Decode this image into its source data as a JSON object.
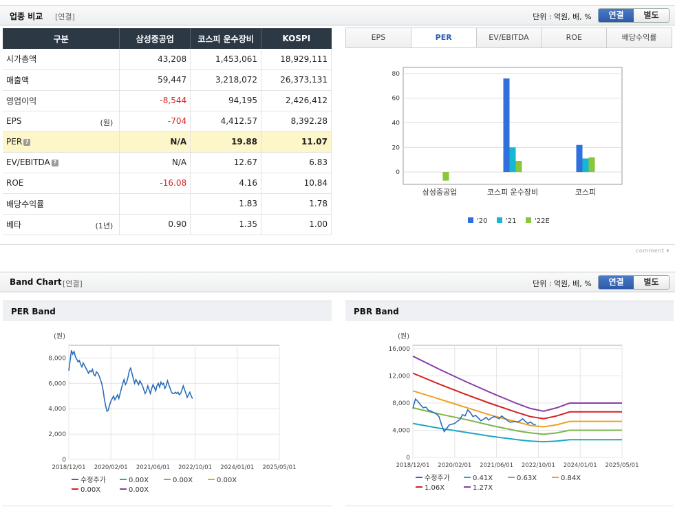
{
  "sector": {
    "title": "업종 비교",
    "basis": "[연결]",
    "unit": "단위 : 억원, 배, %",
    "toggle_on": "연결",
    "toggle_off": "별도",
    "headers": [
      "구분",
      "삼성중공업",
      "코스피 운수장비",
      "KOSPI"
    ],
    "rows": [
      {
        "label": "시가총액",
        "unit": "",
        "v1": "43,208",
        "v2": "1,453,061",
        "v3": "18,929,111"
      },
      {
        "label": "매출액",
        "unit": "",
        "v1": "59,447",
        "v2": "3,218,072",
        "v3": "26,373,131"
      },
      {
        "label": "영업이익",
        "unit": "",
        "v1": "-8,544",
        "v2": "94,195",
        "v3": "2,426,412"
      },
      {
        "label": "EPS",
        "unit": "(원)",
        "v1": "-704",
        "v2": "4,412.57",
        "v3": "8,392.28"
      },
      {
        "label": "PER",
        "unit": "",
        "v1": "N/A",
        "v2": "19.88",
        "v3": "11.07"
      },
      {
        "label": "EV/EBITDA",
        "unit": "",
        "v1": "N/A",
        "v2": "12.67",
        "v3": "6.83"
      },
      {
        "label": "ROE",
        "unit": "",
        "v1": "-16.08",
        "v2": "4.16",
        "v3": "10.84"
      },
      {
        "label": "배당수익률",
        "unit": "",
        "v1": "",
        "v2": "1.83",
        "v3": "1.78"
      },
      {
        "label": "베타",
        "unit": "(1년)",
        "v1": "0.90",
        "v2": "1.35",
        "v3": "1.00"
      }
    ],
    "tabs": [
      "EPS",
      "PER",
      "EV/EBITDA",
      "ROE",
      "배당수익률"
    ],
    "active_tab": "PER",
    "comment": "comment ▾"
  },
  "chart_data": [
    {
      "type": "bar",
      "title": "PER",
      "categories": [
        "삼성중공업",
        "코스피 운수장비",
        "코스피"
      ],
      "series": [
        {
          "name": "'20",
          "values": [
            0,
            76,
            22
          ]
        },
        {
          "name": "'21",
          "values": [
            0,
            20,
            11
          ]
        },
        {
          "name": "'22E",
          "values": [
            -7,
            9,
            12
          ]
        }
      ],
      "ylim": [
        -10,
        85
      ],
      "yticks": [
        0,
        20,
        40,
        60,
        80
      ],
      "colors": [
        "#2f6fde",
        "#15b7d3",
        "#8cc43c"
      ]
    },
    {
      "type": "line",
      "title": "PER Band",
      "ylabel": "(원)",
      "xticks": [
        "2018/12/01",
        "2020/02/01",
        "2021/06/01",
        "2022/10/01",
        "2024/01/01",
        "2025/05/01"
      ],
      "yticks": [
        "0",
        "2,000",
        "4,000",
        "6,000",
        "8,000"
      ],
      "ylim": [
        0,
        9000
      ],
      "xlim": [
        0,
        80
      ],
      "series": [
        {
          "name": "수정주가",
          "color": "#2a6db8",
          "x": [
            0,
            0.5,
            1,
            1.5,
            2,
            2.5,
            3,
            3.5,
            4,
            4.5,
            5,
            5.5,
            6,
            6.5,
            7,
            7.5,
            8,
            8.5,
            9,
            9.5,
            10,
            10.5,
            11,
            11.5,
            12,
            12.5,
            13,
            13.5,
            14,
            14.5,
            15,
            15.5,
            16,
            16.5,
            17,
            17.5,
            18,
            18.5,
            19,
            19.5,
            20,
            20.5,
            21,
            21.5,
            22,
            22.5,
            23,
            23.5,
            24,
            24.5,
            25,
            25.5,
            26,
            26.5,
            27,
            27.5,
            28,
            28.5,
            29,
            29.5,
            30,
            30.5,
            31,
            31.5,
            32,
            32.5,
            33,
            33.5,
            34,
            34.5,
            35,
            35.5,
            36,
            36.5,
            37,
            37.5,
            38,
            38.5,
            39,
            39.5,
            40,
            40.5,
            41,
            41.5,
            42,
            42.5,
            43,
            43.5,
            44,
            44.5,
            45,
            45.5,
            46,
            46.5,
            47
          ],
          "y": [
            7000,
            7800,
            8600,
            8300,
            8500,
            8100,
            7900,
            7700,
            7800,
            7500,
            7300,
            7600,
            7400,
            7200,
            7000,
            6800,
            7000,
            6900,
            7100,
            6700,
            6600,
            6900,
            6800,
            6600,
            6300,
            6000,
            5500,
            4800,
            4200,
            3800,
            3900,
            4300,
            4600,
            4800,
            5000,
            4700,
            4900,
            5100,
            4800,
            5200,
            5600,
            6000,
            6300,
            5900,
            6100,
            6500,
            7000,
            7200,
            6800,
            6400,
            6000,
            6300,
            6100,
            5900,
            6200,
            6000,
            5800,
            5500,
            5200,
            5400,
            5800,
            5500,
            5200,
            5600,
            5900,
            5700,
            5400,
            5800,
            6000,
            5700,
            6100,
            5900,
            6000,
            5600,
            5800,
            6200,
            5900,
            5600,
            5300,
            5200,
            5200,
            5300,
            5200,
            5300,
            5100,
            5200,
            5500,
            5800,
            5500,
            5200,
            4900,
            5100,
            5300,
            5000,
            4800
          ]
        },
        {
          "name": "0.00X",
          "color": "#1ea5c8",
          "x": [],
          "y": []
        },
        {
          "name": "0.00X",
          "color": "#7ab648",
          "x": [],
          "y": []
        },
        {
          "name": "0.00X",
          "color": "#f0a020",
          "x": [],
          "y": []
        },
        {
          "name": "0.00X",
          "color": "#d62020",
          "x": [],
          "y": []
        },
        {
          "name": "0.00X",
          "color": "#8a3ea8",
          "x": [],
          "y": []
        }
      ]
    },
    {
      "type": "line",
      "title": "PBR Band",
      "ylabel": "(원)",
      "xticks": [
        "2018/12/01",
        "2020/02/01",
        "2021/06/01",
        "2022/10/01",
        "2024/01/01",
        "2025/05/01"
      ],
      "yticks": [
        "0",
        "4,000",
        "8,000",
        "12,000",
        "16,000"
      ],
      "ylim": [
        0,
        16500
      ],
      "xlim": [
        0,
        80
      ],
      "series": [
        {
          "name": "수정주가",
          "color": "#2a6db8",
          "x": [
            0,
            1,
            2,
            3,
            4,
            5,
            6,
            7,
            8,
            9,
            10,
            11,
            12,
            13,
            14,
            15,
            16,
            17,
            18,
            19,
            20,
            21,
            22,
            23,
            24,
            25,
            26,
            27,
            28,
            29,
            30,
            31,
            32,
            33,
            34,
            35,
            36,
            37,
            38,
            39,
            40,
            41,
            42,
            43,
            44,
            45,
            46,
            47
          ],
          "y": [
            7200,
            8600,
            8200,
            7700,
            7300,
            7400,
            6900,
            6800,
            6600,
            6400,
            6000,
            4800,
            3800,
            4300,
            4800,
            4900,
            5000,
            5300,
            5600,
            6300,
            6100,
            7000,
            6600,
            6000,
            6200,
            5800,
            5400,
            5600,
            5900,
            5500,
            5800,
            6000,
            5900,
            5700,
            6100,
            5800,
            5500,
            5200,
            5200,
            5300,
            5200,
            5400,
            5700,
            5300,
            5000,
            5200,
            4900,
            4800
          ]
        },
        {
          "name": "0.41X",
          "color": "#1ea5c8",
          "x": [
            0,
            10,
            20,
            30,
            40,
            45,
            50,
            55,
            60,
            65,
            70,
            75,
            80
          ],
          "y": [
            5000,
            4300,
            3700,
            3100,
            2600,
            2400,
            2300,
            2400,
            2600,
            2600,
            2600,
            2600,
            2600
          ]
        },
        {
          "name": "0.63X",
          "color": "#7ab648",
          "x": [
            0,
            10,
            20,
            30,
            40,
            45,
            50,
            55,
            60,
            65,
            70,
            75,
            80
          ],
          "y": [
            7300,
            6400,
            5600,
            4700,
            3900,
            3600,
            3400,
            3600,
            4000,
            4000,
            4000,
            4000,
            4000
          ]
        },
        {
          "name": "0.84X",
          "color": "#f0a020",
          "x": [
            0,
            10,
            20,
            30,
            40,
            45,
            50,
            55,
            60,
            65,
            70,
            75,
            80
          ],
          "y": [
            9800,
            8600,
            7400,
            6200,
            5200,
            4700,
            4500,
            4800,
            5300,
            5300,
            5300,
            5300,
            5300
          ]
        },
        {
          "name": "1.06X",
          "color": "#d62020",
          "x": [
            0,
            10,
            20,
            30,
            40,
            45,
            50,
            55,
            60,
            65,
            70,
            75,
            80
          ],
          "y": [
            12400,
            10800,
            9300,
            7900,
            6600,
            6000,
            5700,
            6100,
            6700,
            6700,
            6700,
            6700,
            6700
          ]
        },
        {
          "name": "1.27X",
          "color": "#8a3ea8",
          "x": [
            0,
            10,
            20,
            30,
            40,
            45,
            50,
            55,
            60,
            65,
            70,
            75,
            80
          ],
          "y": [
            14900,
            13000,
            11200,
            9500,
            7900,
            7200,
            6800,
            7300,
            8000,
            8000,
            8000,
            8000,
            8000
          ]
        }
      ]
    }
  ],
  "band": {
    "title": "Band Chart",
    "basis": "[연결]",
    "unit": "단위 : 억원, 배, %",
    "toggle_on": "연결",
    "toggle_off": "별도",
    "per_title": "PER Band",
    "pbr_title": "PBR Band"
  }
}
